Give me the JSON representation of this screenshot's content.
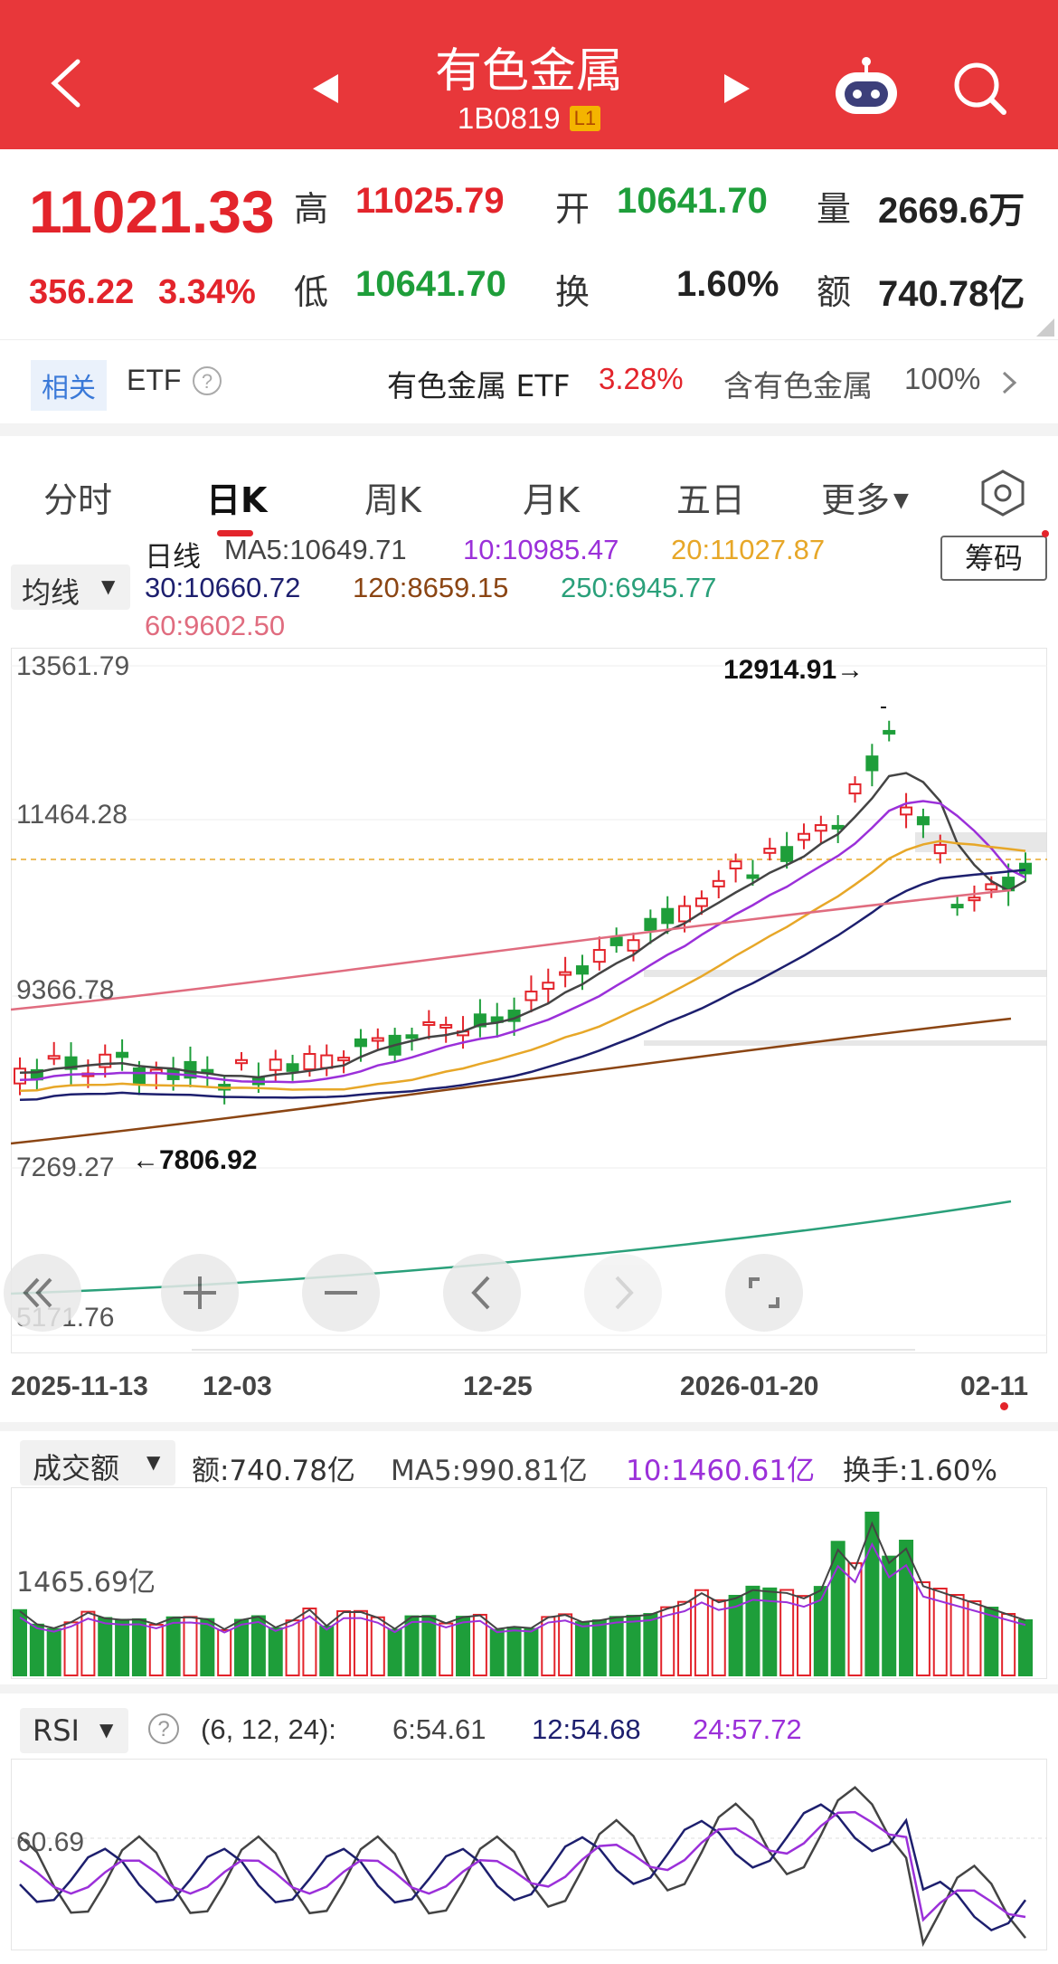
{
  "header": {
    "title": "有色金属",
    "code": "1B0819",
    "level_badge": "L1",
    "color": "#e8373a"
  },
  "quote": {
    "price": "11021.33",
    "change": "356.22",
    "change_pct": "3.34%",
    "high_label": "高",
    "high": "11025.79",
    "open_label": "开",
    "open": "10641.70",
    "volume_label": "量",
    "volume": "2669.6万",
    "low_label": "低",
    "low": "10641.70",
    "turnover_label": "换",
    "turnover": "1.60%",
    "amount_label": "额",
    "amount": "740.78亿"
  },
  "etf_row": {
    "tag": "相关",
    "label": "ETF",
    "etf_name": "有色金属 ETF",
    "etf_pct": "3.28%",
    "holding_label": "含有色金属",
    "holding_pct": "100%"
  },
  "tabs": [
    {
      "label": "分时"
    },
    {
      "label": "日K"
    },
    {
      "label": "周K"
    },
    {
      "label": "月K"
    },
    {
      "label": "五日"
    },
    {
      "label": "更多"
    }
  ],
  "kline": {
    "indicator_select": "均线",
    "period_label": "日线",
    "chip_button": "筹码",
    "ma": {
      "ma5": "MA5:10649.71",
      "ma10": "10:10985.47",
      "ma20": "20:11027.87",
      "ma30": "30:10660.72",
      "ma120": "120:8659.15",
      "ma250": "250:6945.77",
      "ma60": "60:9602.50"
    },
    "yaxis": [
      "13561.79",
      "11464.28",
      "9366.78",
      "7269.27",
      "5171.76"
    ],
    "max_marker": "12914.91→",
    "min_marker": "←7806.92",
    "xaxis": [
      "2025-11-13",
      "12-03",
      "12-25",
      "2026-01-20",
      "02-11"
    ]
  },
  "volume_panel": {
    "select": "成交额",
    "amount": "额:740.78亿",
    "ma5": "MA5:990.81亿",
    "ma10": "10:1460.61亿",
    "turnover": "换手:1.60%",
    "ylabel": "1465.69亿"
  },
  "rsi_panel": {
    "select": "RSI",
    "params": "(6, 12, 24):",
    "rsi6": "6:54.61",
    "rsi12": "12:54.68",
    "rsi24": "24:57.72",
    "ylabel": "60.69"
  },
  "colors": {
    "up": "#e3242b",
    "down": "#1e9e3a",
    "ma5": "#444444",
    "ma10": "#9b30d9",
    "ma20": "#e7a728",
    "ma30": "#1d1f6e",
    "ma60": "#e06c7f",
    "ma120": "#8b4513",
    "ma250": "#2aa07a"
  },
  "icons": [
    "back-icon",
    "prev-icon",
    "next-icon",
    "robot-icon",
    "search-icon",
    "help-icon",
    "settings-hex-icon"
  ]
}
